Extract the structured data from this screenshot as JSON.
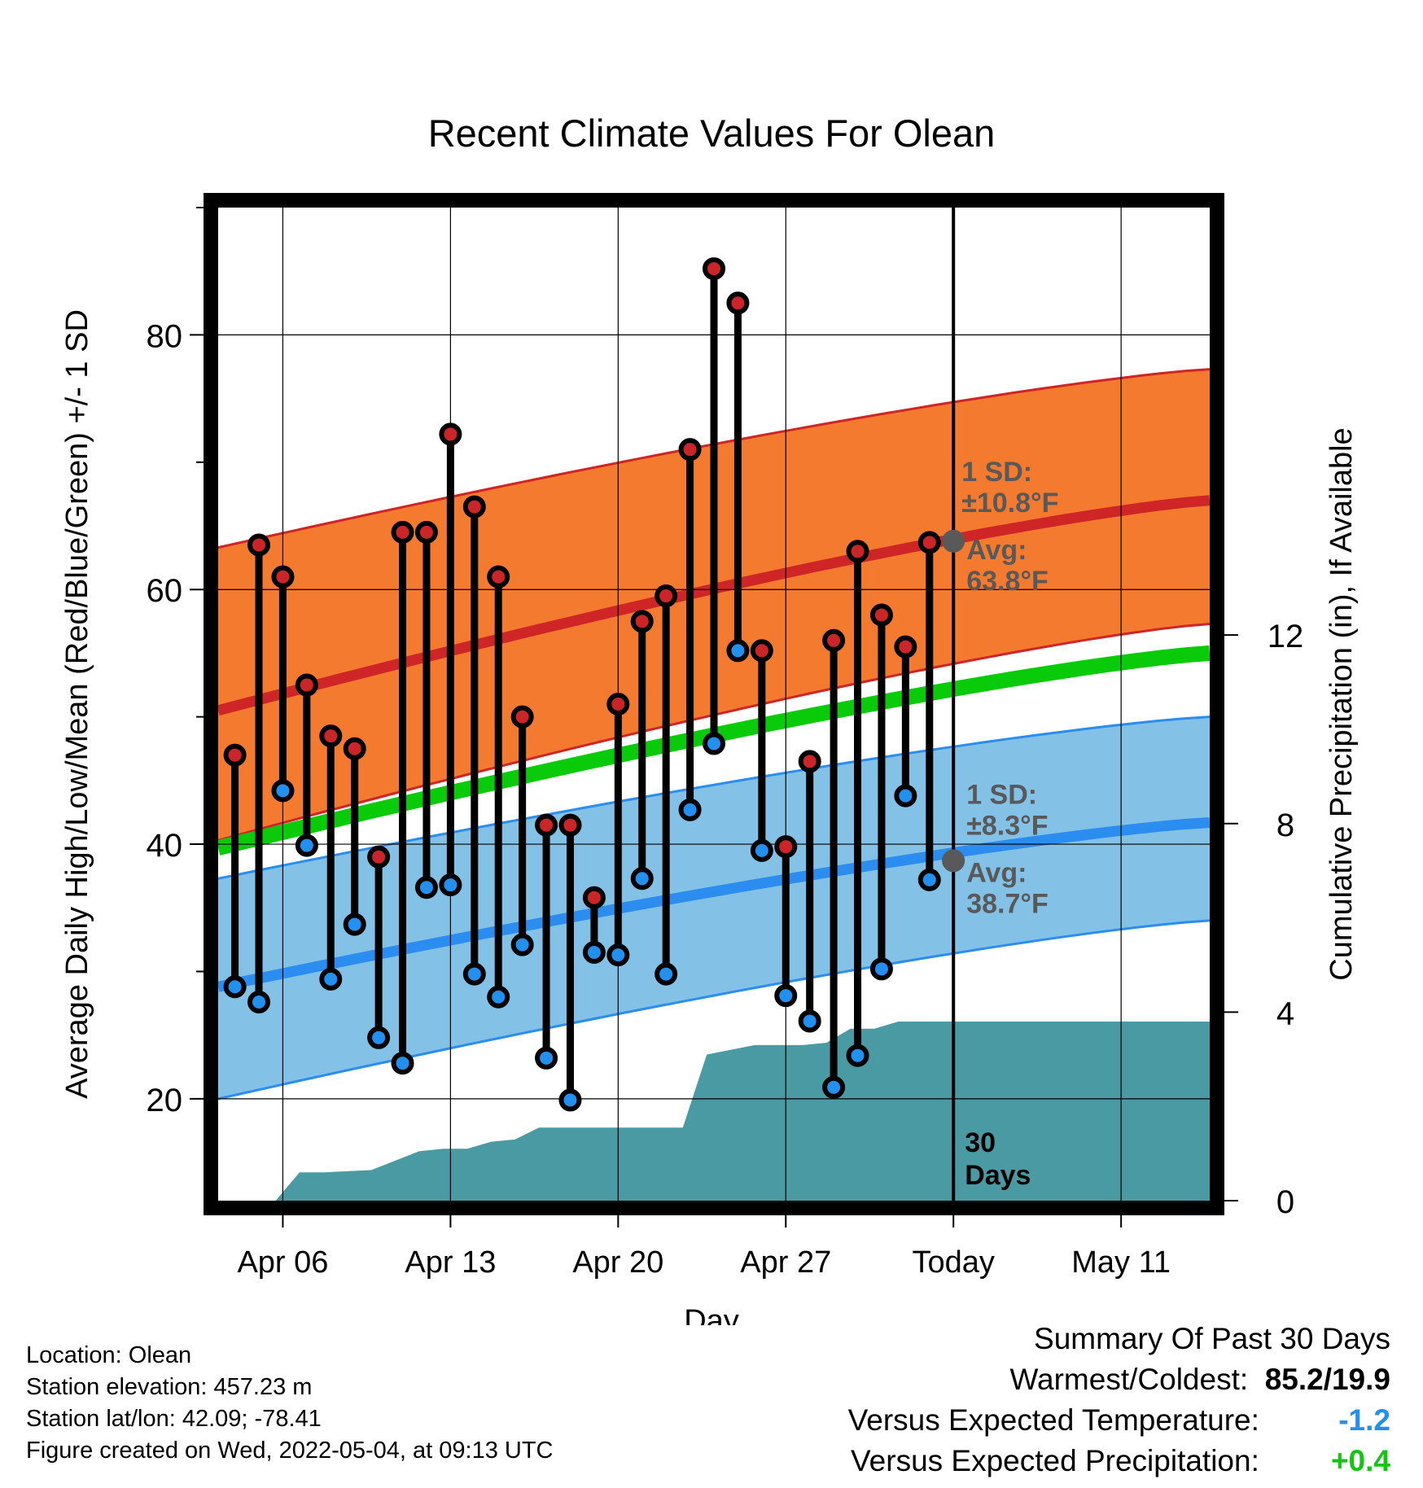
{
  "chart_data": {
    "type": "line",
    "title": "Recent Climate Values For Olean",
    "xlabel": "Day",
    "ylabel_left": "Average Daily High/Low/Mean (Red/Blue/Green) +/- 1 SD",
    "ylabel_right": "Cumulative Precipitation (in), If Available",
    "x_start_date": "2022-04-03",
    "x_range_days": [
      0.3,
      41.7
    ],
    "ylim_left": [
      12,
      90
    ],
    "yticks_left": [
      20,
      40,
      60,
      80
    ],
    "yticks_left_minor": [
      30,
      50,
      70,
      90
    ],
    "ylim_right": [
      0,
      21.07
    ],
    "yticks_right": [
      0,
      4,
      8,
      12
    ],
    "xticks": [
      {
        "day": 3,
        "label": "Apr 06"
      },
      {
        "day": 10,
        "label": "Apr 13"
      },
      {
        "day": 17,
        "label": "Apr 20"
      },
      {
        "day": 24,
        "label": "Apr 27"
      },
      {
        "day": 31,
        "label": "Today"
      },
      {
        "day": 38,
        "label": "May 11"
      }
    ],
    "today_day": 31,
    "grid": true,
    "observed": {
      "days": [
        1,
        2,
        3,
        4,
        5,
        6,
        7,
        8,
        9,
        10,
        11,
        12,
        13,
        14,
        15,
        16,
        17,
        18,
        19,
        20,
        21,
        22,
        23,
        24,
        25,
        26,
        27,
        28,
        29,
        30
      ],
      "high": [
        47,
        63.5,
        61,
        52.5,
        48.5,
        47.5,
        39,
        64.5,
        64.5,
        72.2,
        66.5,
        61,
        50,
        41.5,
        41.5,
        35.8,
        51,
        57.5,
        59.5,
        71,
        85.2,
        82.5,
        55.2,
        39.8,
        46.5,
        56,
        63,
        58,
        55.5,
        63.7
      ],
      "low": [
        28.8,
        27.6,
        44.2,
        39.9,
        29.4,
        33.7,
        24.8,
        22.8,
        36.6,
        36.8,
        29.8,
        28,
        32.1,
        23.2,
        19.9,
        31.5,
        31.3,
        37.3,
        29.8,
        42.7,
        47.9,
        55.2,
        39.5,
        28.1,
        26.1,
        20.9,
        23.4,
        30.2,
        43.8,
        37.2
      ]
    },
    "normals": {
      "days": [
        0.3,
        41.7
      ],
      "avg_high": [
        50.5,
        67
      ],
      "high_sd_upper": [
        63.3,
        77.3
      ],
      "high_sd_lower": [
        40.3,
        57.3
      ],
      "avg_mean": [
        39.7,
        55
      ],
      "avg_low": [
        28.8,
        41.7
      ],
      "low_sd_upper": [
        37.3,
        50
      ],
      "low_sd_lower": [
        20,
        34
      ]
    },
    "precip": {
      "days": [
        0.3,
        2.7,
        3.7,
        4.7,
        6.7,
        7.7,
        8.7,
        9.7,
        10.7,
        11.7,
        12.7,
        13.7,
        14.7,
        15.7,
        16.7,
        17.7,
        18.7,
        19.7,
        20.7,
        21.7,
        22.7,
        23.7,
        24.7,
        25.7,
        26.7,
        27.7,
        28.7,
        29.7,
        30.7,
        31.7,
        35,
        38,
        41.7
      ],
      "values": [
        0,
        0,
        0.6,
        0.6,
        0.65,
        0.85,
        1.05,
        1.1,
        1.1,
        1.25,
        1.3,
        1.55,
        1.55,
        1.55,
        1.55,
        1.55,
        1.55,
        1.55,
        3.1,
        3.2,
        3.3,
        3.3,
        3.3,
        3.35,
        3.65,
        3.65,
        3.8,
        3.8,
        3.8,
        3.8,
        3.8,
        3.8,
        3.8
      ]
    },
    "annotations": {
      "high_sd_label_1": "1 SD:",
      "high_sd_label_2": "±10.8°F",
      "high_avg_label_1": "Avg:",
      "high_avg_label_2": "63.8°F",
      "high_avg_value": 63.8,
      "low_sd_label_1": "1 SD:",
      "low_sd_label_2": "±8.3°F",
      "low_avg_label_1": "Avg:",
      "low_avg_label_2": "38.7°F",
      "low_avg_value": 38.7,
      "days_label_1": "30",
      "days_label_2": "Days"
    },
    "colors": {
      "high_band": "#f47a30",
      "high_avg": "#cf2526",
      "high_dot": "#cc2529",
      "low_band": "#83c1e6",
      "low_avg": "#2b8df0",
      "low_dot": "#2190ee",
      "mean": "#09cb09",
      "precip": "#4a9aa3",
      "annotation": "#595959",
      "today_marker": "#595959"
    }
  },
  "info": {
    "location": "Location: Olean",
    "elevation": "Station elevation: 457.23 m",
    "latlon": "Station lat/lon: 42.09; -78.41",
    "created": "Figure created on Wed, 2022-05-04, at 09:13 UTC"
  },
  "summary": {
    "title": "Summary Of Past 30 Days",
    "warmest_label": "Warmest/Coldest:",
    "warmest_value": "85.2/19.9",
    "temp_label": "Versus Expected Temperature:",
    "temp_value": "-1.2",
    "temp_color": "#2190ee",
    "precip_label": "Versus Expected Precipitation:",
    "precip_value": "+0.4",
    "precip_color": "#16c416"
  }
}
